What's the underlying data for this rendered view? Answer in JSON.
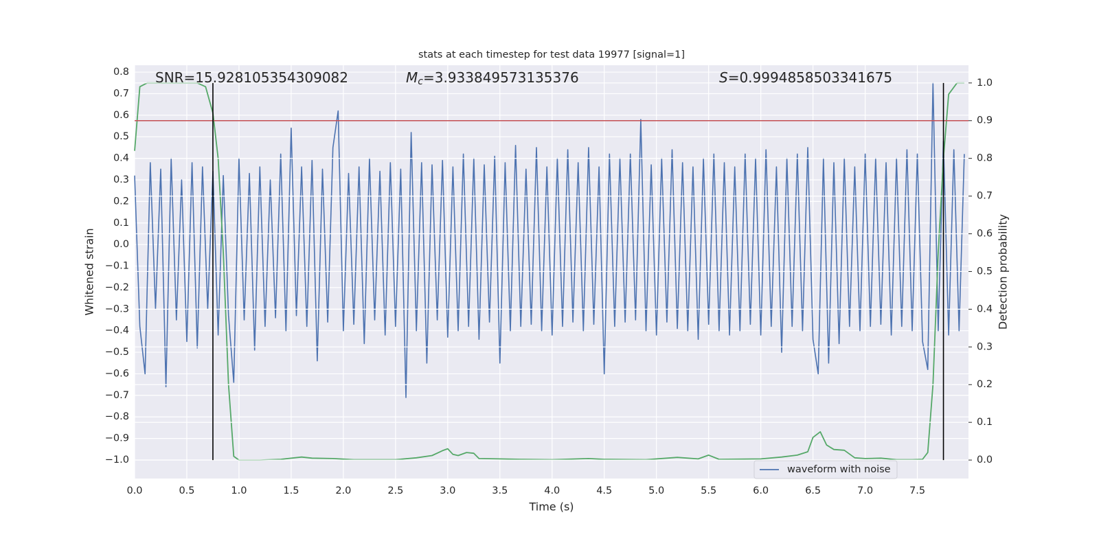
{
  "chart_data": {
    "type": "line",
    "title": "stats at each timestep for test data 19977 [signal=1]",
    "xlabel": "Time (s)",
    "ylabel": "Whitened strain",
    "y2label": "Detection probability",
    "xlim": [
      0,
      7.99
    ],
    "ylim": [
      -1.086,
      0.832
    ],
    "y2lim": [
      -0.049,
      1.047
    ],
    "xticks": [
      {
        "value": 0,
        "label": "0.0"
      },
      0.5,
      {
        "value": 1,
        "label": "1.0"
      },
      1.5,
      {
        "value": 2,
        "label": "2.0"
      },
      2.5,
      {
        "value": 3,
        "label": "3.0"
      },
      3.5,
      {
        "value": 4,
        "label": "4.0"
      },
      4.5,
      {
        "value": 5,
        "label": "5.0"
      },
      5.5,
      {
        "value": 6,
        "label": "6.0"
      },
      6.5,
      {
        "value": 7,
        "label": "7.0"
      },
      7.5
    ],
    "yticks": [
      {
        "value": -1,
        "label": "−1.0"
      },
      {
        "value": -0.9,
        "label": "−0.9"
      },
      {
        "value": -0.8,
        "label": "−0.8"
      },
      {
        "value": -0.7,
        "label": "−0.7"
      },
      {
        "value": -0.6,
        "label": "−0.6"
      },
      {
        "value": -0.5,
        "label": "−0.5"
      },
      {
        "value": -0.4,
        "label": "−0.4"
      },
      {
        "value": -0.3,
        "label": "−0.3"
      },
      {
        "value": -0.2,
        "label": "−0.2"
      },
      {
        "value": -0.1,
        "label": "−0.1"
      },
      {
        "value": 0,
        "label": "0.0"
      },
      0.1,
      0.2,
      0.3,
      0.4,
      0.5,
      0.6,
      0.7,
      0.8
    ],
    "y2ticks": [
      {
        "value": 0,
        "label": "0.0"
      },
      0.1,
      0.2,
      0.3,
      0.4,
      0.5,
      0.6,
      0.7,
      0.8,
      0.9,
      {
        "value": 1,
        "label": "1.0"
      }
    ],
    "grid": true,
    "legend": "lower right",
    "annotations": [
      {
        "text": "SNR=15.928105354309082"
      },
      {
        "symbol": "M",
        "sub": "c",
        "text": "=3.933849573135376"
      },
      {
        "symbol": "S",
        "text": "=0.9994858503341675"
      }
    ],
    "threshold": {
      "value": 0.9,
      "axis": "y2",
      "color": "#c44e52"
    },
    "vlines": {
      "x": [
        0.75,
        7.75
      ],
      "range": [
        0,
        1
      ],
      "axis": "y2",
      "color": "#000000"
    },
    "series": [
      {
        "name": "waveform with noise",
        "color": "#4c72b0",
        "x": [
          0,
          0.05,
          0.1,
          0.15,
          0.2,
          0.25,
          0.3,
          0.35,
          0.4,
          0.45,
          0.5,
          0.55,
          0.6,
          0.65,
          0.7,
          0.75,
          0.8,
          0.85,
          0.9,
          0.95,
          1,
          1.05,
          1.1,
          1.15,
          1.2,
          1.25,
          1.3,
          1.35,
          1.4,
          1.45,
          1.5,
          1.55,
          1.6,
          1.65,
          1.7,
          1.75,
          1.8,
          1.85,
          1.9,
          1.95,
          2,
          2.05,
          2.1,
          2.15,
          2.2,
          2.25,
          2.3,
          2.35,
          2.4,
          2.45,
          2.5,
          2.55,
          2.6,
          2.65,
          2.7,
          2.75,
          2.8,
          2.85,
          2.9,
          2.95,
          3,
          3.05,
          3.1,
          3.15,
          3.2,
          3.25,
          3.3,
          3.35,
          3.4,
          3.45,
          3.5,
          3.55,
          3.6,
          3.65,
          3.7,
          3.75,
          3.8,
          3.85,
          3.9,
          3.95,
          4,
          4.05,
          4.1,
          4.15,
          4.2,
          4.25,
          4.3,
          4.35,
          4.4,
          4.45,
          4.5,
          4.55,
          4.6,
          4.65,
          4.7,
          4.75,
          4.8,
          4.85,
          4.9,
          4.95,
          5,
          5.05,
          5.1,
          5.15,
          5.2,
          5.25,
          5.3,
          5.35,
          5.4,
          5.45,
          5.5,
          5.55,
          5.6,
          5.65,
          5.7,
          5.75,
          5.8,
          5.85,
          5.9,
          5.95,
          6,
          6.05,
          6.1,
          6.15,
          6.2,
          6.25,
          6.3,
          6.35,
          6.4,
          6.45,
          6.5,
          6.55,
          6.6,
          6.65,
          6.7,
          6.75,
          6.8,
          6.85,
          6.9,
          6.95,
          7,
          7.05,
          7.1,
          7.15,
          7.2,
          7.25,
          7.3,
          7.35,
          7.4,
          7.45,
          7.5,
          7.55,
          7.6,
          7.65,
          7.7,
          7.75,
          7.8,
          7.85,
          7.9,
          7.95
        ],
        "values": [
          0.32,
          -0.38,
          -0.6,
          0.38,
          -0.3,
          0.35,
          -0.66,
          0.4,
          -0.35,
          0.3,
          -0.45,
          0.38,
          -0.48,
          0.36,
          -0.3,
          0.34,
          -0.42,
          0.32,
          -0.33,
          -0.64,
          0.4,
          -0.35,
          0.33,
          -0.49,
          0.36,
          -0.38,
          0.3,
          -0.34,
          0.42,
          -0.4,
          0.54,
          -0.33,
          0.36,
          -0.38,
          0.39,
          -0.54,
          0.35,
          -0.36,
          0.45,
          0.62,
          -0.4,
          0.33,
          -0.37,
          0.36,
          -0.46,
          0.4,
          -0.35,
          0.34,
          -0.42,
          0.38,
          -0.38,
          0.35,
          -0.71,
          0.52,
          -0.4,
          0.38,
          -0.55,
          0.37,
          -0.35,
          0.39,
          -0.43,
          0.36,
          -0.4,
          0.42,
          -0.38,
          0.4,
          -0.44,
          0.37,
          -0.36,
          0.41,
          -0.55,
          0.38,
          -0.4,
          0.46,
          -0.38,
          0.35,
          -0.37,
          0.45,
          -0.4,
          0.36,
          -0.42,
          0.4,
          -0.38,
          0.44,
          -0.36,
          0.38,
          -0.4,
          0.45,
          -0.37,
          0.36,
          -0.6,
          0.42,
          -0.38,
          0.4,
          -0.36,
          0.42,
          -0.35,
          0.58,
          -0.4,
          0.37,
          -0.42,
          0.4,
          -0.36,
          0.44,
          -0.39,
          0.38,
          -0.4,
          0.36,
          -0.44,
          0.4,
          -0.37,
          0.42,
          -0.4,
          0.38,
          -0.42,
          0.36,
          -0.4,
          0.42,
          -0.37,
          0.4,
          -0.42,
          0.44,
          -0.38,
          0.36,
          -0.5,
          0.4,
          -0.38,
          0.42,
          -0.4,
          0.45,
          -0.44,
          -0.6,
          0.4,
          -0.55,
          0.38,
          -0.46,
          0.4,
          -0.38,
          0.36,
          -0.4,
          0.42,
          -0.38,
          0.4,
          -0.37,
          0.38,
          -0.42,
          0.4,
          -0.38,
          0.44,
          -0.4,
          0.42,
          -0.45,
          -0.58,
          0.75,
          -0.4,
          0.48,
          -0.42,
          0.44,
          -0.4,
          0.42
        ]
      },
      {
        "axis": "y2",
        "color": "#55a868",
        "x": [
          0,
          0.05,
          0.12,
          0.2,
          0.3,
          0.4,
          0.5,
          0.6,
          0.68,
          0.75,
          0.8,
          0.85,
          0.9,
          0.95,
          1,
          1.2,
          1.4,
          1.6,
          1.7,
          1.9,
          2.1,
          2.5,
          2.7,
          2.85,
          2.95,
          3,
          3.05,
          3.1,
          3.18,
          3.25,
          3.3,
          3.5,
          3.7,
          4,
          4.35,
          4.5,
          4.9,
          5.2,
          5.4,
          5.5,
          5.6,
          6,
          6.2,
          6.35,
          6.45,
          6.5,
          6.57,
          6.63,
          6.7,
          6.8,
          6.9,
          7,
          7.15,
          7.3,
          7.45,
          7.55,
          7.6,
          7.65,
          7.7,
          7.75,
          7.8,
          7.88,
          7.95
        ],
        "values": [
          0.82,
          0.99,
          1,
          1,
          1,
          1,
          1,
          1,
          0.99,
          0.92,
          0.8,
          0.55,
          0.2,
          0.01,
          0,
          0,
          0.002,
          0.008,
          0.005,
          0.004,
          0.001,
          0.001,
          0.006,
          0.012,
          0.025,
          0.03,
          0.015,
          0.012,
          0.02,
          0.018,
          0.004,
          0.003,
          0.002,
          0.001,
          0.004,
          0.002,
          0.001,
          0.007,
          0.003,
          0.013,
          0.002,
          0.003,
          0.008,
          0.013,
          0.022,
          0.06,
          0.075,
          0.04,
          0.028,
          0.026,
          0.006,
          0.004,
          0.005,
          0.001,
          0.001,
          0.002,
          0.02,
          0.2,
          0.55,
          0.8,
          0.97,
          1,
          1
        ]
      }
    ]
  }
}
